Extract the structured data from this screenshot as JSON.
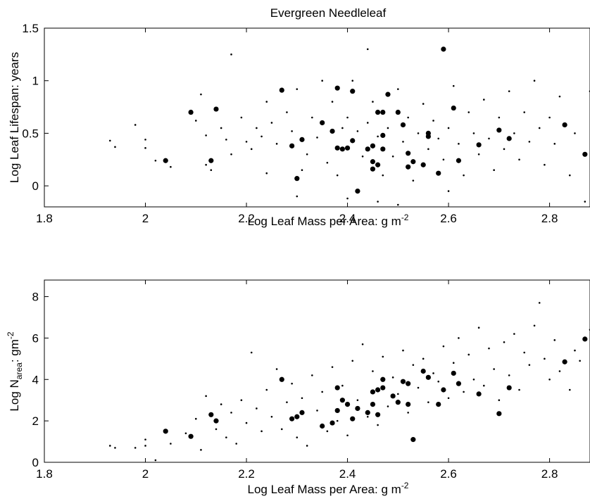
{
  "figure": {
    "title": "Evergreen Needleleaf"
  },
  "chart_data": [
    {
      "type": "scatter",
      "title": "Evergreen Needleleaf",
      "xlabel": "Log Leaf Mass per Area: g m",
      "xlabel_sup": "-2",
      "ylabel": "Log Leaf Lifespan: years",
      "xlim": [
        1.8,
        2.88
      ],
      "ylim": [
        -0.2,
        1.5
      ],
      "xticks": [
        1.8,
        2,
        2.2,
        2.4,
        2.6,
        2.8
      ],
      "xtick_labels": [
        "1.8",
        "2",
        "2.2",
        "2.4",
        "2.6",
        "2.8"
      ],
      "yticks": [
        0,
        0.5,
        1,
        1.5
      ],
      "ytick_labels": [
        "0",
        "0.5",
        "1",
        "1.5"
      ],
      "grid": false,
      "series": [
        {
          "marker": "large-dot",
          "points": [
            [
              2.04,
              0.24
            ],
            [
              2.09,
              0.7
            ],
            [
              2.13,
              0.24
            ],
            [
              2.14,
              0.73
            ],
            [
              2.27,
              0.91
            ],
            [
              2.29,
              0.38
            ],
            [
              2.3,
              0.07
            ],
            [
              2.31,
              0.44
            ],
            [
              2.35,
              0.6
            ],
            [
              2.37,
              0.52
            ],
            [
              2.38,
              0.93
            ],
            [
              2.38,
              0.36
            ],
            [
              2.39,
              0.35
            ],
            [
              2.4,
              0.36
            ],
            [
              2.41,
              0.9
            ],
            [
              2.41,
              0.43
            ],
            [
              2.42,
              -0.05
            ],
            [
              2.44,
              0.35
            ],
            [
              2.45,
              0.23
            ],
            [
              2.45,
              0.38
            ],
            [
              2.45,
              0.16
            ],
            [
              2.46,
              0.7
            ],
            [
              2.46,
              0.2
            ],
            [
              2.47,
              0.48
            ],
            [
              2.47,
              0.35
            ],
            [
              2.47,
              0.7
            ],
            [
              2.48,
              0.87
            ],
            [
              2.5,
              0.7
            ],
            [
              2.51,
              0.58
            ],
            [
              2.52,
              0.31
            ],
            [
              2.52,
              0.18
            ],
            [
              2.53,
              0.23
            ],
            [
              2.55,
              0.2
            ],
            [
              2.56,
              0.5
            ],
            [
              2.56,
              0.47
            ],
            [
              2.58,
              0.12
            ],
            [
              2.59,
              1.3
            ],
            [
              2.61,
              0.74
            ],
            [
              2.62,
              0.24
            ],
            [
              2.66,
              0.39
            ],
            [
              2.7,
              0.53
            ],
            [
              2.72,
              0.45
            ],
            [
              2.83,
              0.58
            ],
            [
              2.87,
              0.3
            ]
          ]
        },
        {
          "marker": "small-dot",
          "points": [
            [
              1.93,
              0.43
            ],
            [
              1.94,
              0.37
            ],
            [
              1.98,
              0.58
            ],
            [
              2.0,
              0.36
            ],
            [
              2.0,
              0.44
            ],
            [
              2.02,
              0.24
            ],
            [
              2.05,
              0.18
            ],
            [
              2.1,
              0.62
            ],
            [
              2.11,
              0.87
            ],
            [
              2.12,
              0.48
            ],
            [
              2.12,
              0.2
            ],
            [
              2.13,
              0.15
            ],
            [
              2.15,
              0.55
            ],
            [
              2.16,
              0.44
            ],
            [
              2.17,
              1.25
            ],
            [
              2.17,
              0.3
            ],
            [
              2.19,
              0.65
            ],
            [
              2.2,
              0.42
            ],
            [
              2.21,
              0.35
            ],
            [
              2.22,
              0.55
            ],
            [
              2.23,
              0.47
            ],
            [
              2.24,
              0.8
            ],
            [
              2.24,
              0.12
            ],
            [
              2.25,
              0.6
            ],
            [
              2.26,
              0.4
            ],
            [
              2.28,
              0.7
            ],
            [
              2.29,
              0.52
            ],
            [
              2.3,
              0.92
            ],
            [
              2.31,
              0.15
            ],
            [
              2.32,
              0.3
            ],
            [
              2.33,
              0.65
            ],
            [
              2.34,
              0.46
            ],
            [
              2.35,
              1.0
            ],
            [
              2.36,
              0.22
            ],
            [
              2.37,
              0.8
            ],
            [
              2.38,
              0.1
            ],
            [
              2.39,
              0.55
            ],
            [
              2.4,
              0.65
            ],
            [
              2.41,
              1.0
            ],
            [
              2.42,
              0.52
            ],
            [
              2.43,
              0.28
            ],
            [
              2.44,
              1.3
            ],
            [
              2.44,
              0.6
            ],
            [
              2.45,
              0.8
            ],
            [
              2.46,
              0.47
            ],
            [
              2.47,
              0.1
            ],
            [
              2.48,
              0.55
            ],
            [
              2.49,
              0.28
            ],
            [
              2.5,
              0.92
            ],
            [
              2.51,
              0.42
            ],
            [
              2.52,
              0.65
            ],
            [
              2.53,
              0.05
            ],
            [
              2.54,
              0.5
            ],
            [
              2.55,
              0.78
            ],
            [
              2.56,
              0.35
            ],
            [
              2.57,
              0.62
            ],
            [
              2.58,
              0.45
            ],
            [
              2.59,
              0.25
            ],
            [
              2.6,
              0.55
            ],
            [
              2.61,
              0.95
            ],
            [
              2.62,
              0.4
            ],
            [
              2.63,
              0.1
            ],
            [
              2.64,
              0.7
            ],
            [
              2.65,
              0.5
            ],
            [
              2.66,
              0.3
            ],
            [
              2.67,
              0.82
            ],
            [
              2.68,
              0.45
            ],
            [
              2.69,
              0.15
            ],
            [
              2.7,
              0.65
            ],
            [
              2.71,
              0.35
            ],
            [
              2.72,
              0.9
            ],
            [
              2.73,
              0.5
            ],
            [
              2.74,
              0.25
            ],
            [
              2.75,
              0.7
            ],
            [
              2.76,
              0.42
            ],
            [
              2.77,
              1.0
            ],
            [
              2.78,
              0.55
            ],
            [
              2.79,
              0.2
            ],
            [
              2.8,
              0.65
            ],
            [
              2.81,
              0.4
            ],
            [
              2.82,
              0.85
            ],
            [
              2.84,
              0.1
            ],
            [
              2.85,
              0.5
            ],
            [
              2.87,
              -0.15
            ],
            [
              2.88,
              0.9
            ],
            [
              2.3,
              -0.1
            ],
            [
              2.4,
              -0.12
            ],
            [
              2.5,
              -0.18
            ],
            [
              2.6,
              -0.05
            ],
            [
              2.46,
              -0.15
            ]
          ]
        }
      ]
    },
    {
      "type": "scatter",
      "xlabel": "Log Leaf Mass per Area: g m",
      "xlabel_sup": "-2",
      "ylabel": "Log N",
      "ylabel_sub": "area",
      "ylabel_rest": ": gm",
      "ylabel_sup": "-2",
      "xlim": [
        1.8,
        2.88
      ],
      "ylim": [
        0,
        8.8
      ],
      "xticks": [
        1.8,
        2,
        2.2,
        2.4,
        2.6,
        2.8
      ],
      "xtick_labels": [
        "1.8",
        "2",
        "2.2",
        "2.4",
        "2.6",
        "2.8"
      ],
      "yticks": [
        0,
        2,
        4,
        6,
        8
      ],
      "ytick_labels": [
        "0",
        "2",
        "4",
        "6",
        "8"
      ],
      "grid": false,
      "series": [
        {
          "marker": "large-dot",
          "points": [
            [
              2.04,
              1.5
            ],
            [
              2.09,
              1.25
            ],
            [
              2.13,
              2.3
            ],
            [
              2.14,
              2.0
            ],
            [
              2.27,
              4.0
            ],
            [
              2.29,
              2.1
            ],
            [
              2.3,
              2.2
            ],
            [
              2.31,
              2.4
            ],
            [
              2.35,
              1.75
            ],
            [
              2.37,
              1.9
            ],
            [
              2.38,
              3.6
            ],
            [
              2.38,
              2.5
            ],
            [
              2.39,
              3.0
            ],
            [
              2.4,
              2.8
            ],
            [
              2.41,
              2.1
            ],
            [
              2.42,
              2.6
            ],
            [
              2.44,
              2.4
            ],
            [
              2.45,
              3.4
            ],
            [
              2.45,
              2.8
            ],
            [
              2.46,
              3.5
            ],
            [
              2.46,
              2.3
            ],
            [
              2.47,
              3.6
            ],
            [
              2.47,
              4.0
            ],
            [
              2.49,
              3.2
            ],
            [
              2.5,
              2.9
            ],
            [
              2.51,
              3.9
            ],
            [
              2.52,
              3.8
            ],
            [
              2.52,
              2.8
            ],
            [
              2.53,
              1.1
            ],
            [
              2.55,
              4.4
            ],
            [
              2.56,
              4.1
            ],
            [
              2.58,
              2.8
            ],
            [
              2.59,
              3.5
            ],
            [
              2.61,
              4.3
            ],
            [
              2.62,
              3.8
            ],
            [
              2.66,
              3.3
            ],
            [
              2.7,
              2.35
            ],
            [
              2.72,
              3.6
            ],
            [
              2.83,
              4.85
            ],
            [
              2.87,
              5.95
            ]
          ]
        },
        {
          "marker": "small-dot",
          "points": [
            [
              1.93,
              0.8
            ],
            [
              1.94,
              0.7
            ],
            [
              1.98,
              0.7
            ],
            [
              2.0,
              0.8
            ],
            [
              2.0,
              1.1
            ],
            [
              2.02,
              0.1
            ],
            [
              2.05,
              0.9
            ],
            [
              2.08,
              1.4
            ],
            [
              2.1,
              2.1
            ],
            [
              2.11,
              0.6
            ],
            [
              2.12,
              3.2
            ],
            [
              2.14,
              1.6
            ],
            [
              2.15,
              2.8
            ],
            [
              2.16,
              1.2
            ],
            [
              2.17,
              2.4
            ],
            [
              2.18,
              0.9
            ],
            [
              2.19,
              3.0
            ],
            [
              2.2,
              1.9
            ],
            [
              2.21,
              5.3
            ],
            [
              2.22,
              2.6
            ],
            [
              2.23,
              1.5
            ],
            [
              2.24,
              3.5
            ],
            [
              2.25,
              2.2
            ],
            [
              2.26,
              4.5
            ],
            [
              2.27,
              1.6
            ],
            [
              2.28,
              2.9
            ],
            [
              2.29,
              3.8
            ],
            [
              2.3,
              1.2
            ],
            [
              2.31,
              3.1
            ],
            [
              2.32,
              0.8
            ],
            [
              2.33,
              4.2
            ],
            [
              2.34,
              2.5
            ],
            [
              2.35,
              3.4
            ],
            [
              2.36,
              1.5
            ],
            [
              2.37,
              4.6
            ],
            [
              2.38,
              2.0
            ],
            [
              2.39,
              3.7
            ],
            [
              2.4,
              1.3
            ],
            [
              2.41,
              4.9
            ],
            [
              2.42,
              3.0
            ],
            [
              2.43,
              5.7
            ],
            [
              2.44,
              2.2
            ],
            [
              2.45,
              4.4
            ],
            [
              2.46,
              1.8
            ],
            [
              2.47,
              5.1
            ],
            [
              2.48,
              2.7
            ],
            [
              2.49,
              4.1
            ],
            [
              2.5,
              3.3
            ],
            [
              2.51,
              5.4
            ],
            [
              2.52,
              2.4
            ],
            [
              2.53,
              4.7
            ],
            [
              2.54,
              3.6
            ],
            [
              2.55,
              5.0
            ],
            [
              2.56,
              2.9
            ],
            [
              2.57,
              4.3
            ],
            [
              2.58,
              3.9
            ],
            [
              2.59,
              5.6
            ],
            [
              2.6,
              3.1
            ],
            [
              2.61,
              4.8
            ],
            [
              2.62,
              6.0
            ],
            [
              2.63,
              3.4
            ],
            [
              2.64,
              5.2
            ],
            [
              2.65,
              4.0
            ],
            [
              2.66,
              6.5
            ],
            [
              2.67,
              3.7
            ],
            [
              2.68,
              5.5
            ],
            [
              2.69,
              4.5
            ],
            [
              2.7,
              3.0
            ],
            [
              2.71,
              5.8
            ],
            [
              2.72,
              4.2
            ],
            [
              2.73,
              6.2
            ],
            [
              2.74,
              3.5
            ],
            [
              2.75,
              5.3
            ],
            [
              2.76,
              4.7
            ],
            [
              2.77,
              6.6
            ],
            [
              2.78,
              7.7
            ],
            [
              2.79,
              5.0
            ],
            [
              2.8,
              4.0
            ],
            [
              2.81,
              5.9
            ],
            [
              2.82,
              4.4
            ],
            [
              2.84,
              3.5
            ],
            [
              2.85,
              5.4
            ],
            [
              2.86,
              4.9
            ],
            [
              2.88,
              6.4
            ]
          ]
        }
      ]
    }
  ]
}
